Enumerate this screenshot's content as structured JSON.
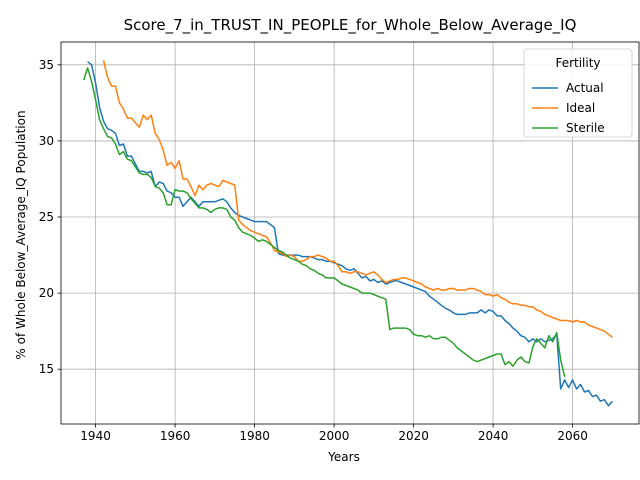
{
  "chart_data": {
    "type": "line",
    "title": "Score_7_in_TRUST_IN_PEOPLE_for_Whole_Below_Average_IQ",
    "xlabel": "Years",
    "ylabel": "% of Whole Below_Average_IQ Population",
    "xlim": [
      1931.3,
      2076.7
    ],
    "ylim": [
      11.4,
      36.5
    ],
    "xticks": [
      1940,
      1960,
      1980,
      2000,
      2020,
      2040,
      2060
    ],
    "yticks": [
      15,
      20,
      25,
      30,
      35
    ],
    "grid": true,
    "legend": {
      "title": "Fertility",
      "placement": "top-right"
    },
    "series": [
      {
        "name": "Actual",
        "color": "#1f77b4",
        "x": [
          1938,
          1939,
          1940,
          1941,
          1942,
          1943,
          1944,
          1945,
          1946,
          1947,
          1948,
          1949,
          1950,
          1951,
          1952,
          1953,
          1954,
          1955,
          1956,
          1957,
          1958,
          1959,
          1960,
          1961,
          1962,
          1963,
          1964,
          1965,
          1966,
          1967,
          1968,
          1969,
          1970,
          1971,
          1972,
          1973,
          1974,
          1975,
          1976,
          1977,
          1978,
          1979,
          1980,
          1981,
          1982,
          1983,
          1984,
          1985,
          1986,
          1987,
          1988,
          1989,
          1990,
          1991,
          1992,
          1993,
          1994,
          1995,
          1996,
          1997,
          1998,
          1999,
          2000,
          2001,
          2002,
          2003,
          2004,
          2005,
          2006,
          2007,
          2008,
          2009,
          2010,
          2011,
          2012,
          2013,
          2014,
          2015,
          2016,
          2017,
          2018,
          2019,
          2020,
          2021,
          2022,
          2023,
          2024,
          2025,
          2026,
          2027,
          2028,
          2029,
          2030,
          2031,
          2032,
          2033,
          2034,
          2035,
          2036,
          2037,
          2038,
          2039,
          2040,
          2041,
          2042,
          2043,
          2044,
          2045,
          2046,
          2047,
          2048,
          2049,
          2050,
          2051,
          2052,
          2053,
          2054,
          2055,
          2056,
          2057,
          2058,
          2059,
          2060,
          2061,
          2062,
          2063,
          2064,
          2065,
          2066,
          2067,
          2068,
          2069,
          2070
        ],
        "values": [
          35.2,
          35.0,
          33.8,
          32.2,
          31.3,
          30.8,
          30.7,
          30.5,
          29.7,
          29.8,
          29.0,
          29.0,
          28.5,
          28.0,
          28.0,
          27.9,
          28.0,
          27.0,
          27.3,
          27.2,
          26.7,
          26.6,
          26.3,
          26.3,
          25.7,
          26.0,
          26.3,
          26.0,
          25.7,
          26.0,
          26.0,
          26.0,
          26.0,
          26.1,
          26.2,
          26.0,
          25.6,
          25.3,
          25.1,
          25.0,
          24.9,
          24.8,
          24.7,
          24.7,
          24.7,
          24.7,
          24.5,
          24.3,
          22.6,
          22.5,
          22.5,
          22.5,
          22.5,
          22.5,
          22.4,
          22.4,
          22.4,
          22.3,
          22.2,
          22.2,
          22.1,
          22.1,
          22.0,
          21.9,
          21.8,
          21.6,
          21.5,
          21.6,
          21.3,
          21.0,
          21.1,
          20.8,
          20.9,
          20.7,
          20.8,
          20.6,
          20.7,
          20.8,
          20.8,
          20.7,
          20.6,
          20.5,
          20.4,
          20.3,
          20.2,
          20.1,
          19.8,
          19.6,
          19.4,
          19.2,
          19.0,
          18.9,
          18.7,
          18.6,
          18.6,
          18.6,
          18.7,
          18.7,
          18.7,
          18.9,
          18.7,
          18.9,
          18.8,
          18.5,
          18.5,
          18.2,
          18.0,
          17.7,
          17.5,
          17.2,
          17.1,
          16.8,
          17.0,
          16.8,
          17.0,
          16.8,
          16.9,
          17.0,
          17.3,
          13.7,
          14.3,
          13.8,
          14.3,
          13.7,
          14.0,
          13.5,
          13.6,
          13.2,
          13.3,
          12.9,
          13.0,
          12.6,
          12.9
        ]
      },
      {
        "name": "Ideal",
        "color": "#ff7f0e",
        "x": [
          1942,
          1943,
          1944,
          1945,
          1946,
          1947,
          1948,
          1949,
          1950,
          1951,
          1952,
          1953,
          1954,
          1955,
          1956,
          1957,
          1958,
          1959,
          1960,
          1961,
          1962,
          1963,
          1964,
          1965,
          1966,
          1967,
          1968,
          1969,
          1970,
          1971,
          1972,
          1973,
          1974,
          1975,
          1976,
          1977,
          1978,
          1979,
          1980,
          1981,
          1982,
          1983,
          1984,
          1985,
          1986,
          1987,
          1988,
          1989,
          1990,
          1991,
          1992,
          1993,
          1994,
          1995,
          1996,
          1997,
          1998,
          1999,
          2000,
          2001,
          2002,
          2003,
          2004,
          2005,
          2006,
          2007,
          2008,
          2009,
          2010,
          2011,
          2012,
          2013,
          2014,
          2015,
          2016,
          2017,
          2018,
          2019,
          2020,
          2021,
          2022,
          2023,
          2024,
          2025,
          2026,
          2027,
          2028,
          2029,
          2030,
          2031,
          2032,
          2033,
          2034,
          2035,
          2036,
          2037,
          2038,
          2039,
          2040,
          2041,
          2042,
          2043,
          2044,
          2045,
          2046,
          2047,
          2048,
          2049,
          2050,
          2051,
          2052,
          2053,
          2054,
          2055,
          2056,
          2057,
          2058,
          2059,
          2060,
          2061,
          2062,
          2063,
          2064,
          2065,
          2066,
          2067,
          2068,
          2069,
          2070
        ],
        "values": [
          35.3,
          34.2,
          33.6,
          33.6,
          32.5,
          32.1,
          31.5,
          31.5,
          31.2,
          30.9,
          31.7,
          31.4,
          31.7,
          30.5,
          30.1,
          29.4,
          28.4,
          28.6,
          28.2,
          28.7,
          27.5,
          27.5,
          27.0,
          26.4,
          27.1,
          26.8,
          27.1,
          27.2,
          27.1,
          27.0,
          27.4,
          27.3,
          27.2,
          27.1,
          24.8,
          24.5,
          24.3,
          24.1,
          24.0,
          23.9,
          23.8,
          23.7,
          23.3,
          22.8,
          22.7,
          22.6,
          22.4,
          22.5,
          22.4,
          22.1,
          22.1,
          22.2,
          22.4,
          22.4,
          22.5,
          22.4,
          22.3,
          22.1,
          22.1,
          21.8,
          21.4,
          21.4,
          21.3,
          21.4,
          21.4,
          21.3,
          21.2,
          21.3,
          21.4,
          21.2,
          20.9,
          20.7,
          20.8,
          20.9,
          20.9,
          21.0,
          21.0,
          20.9,
          20.8,
          20.7,
          20.6,
          20.4,
          20.3,
          20.2,
          20.3,
          20.2,
          20.2,
          20.3,
          20.3,
          20.2,
          20.2,
          20.2,
          20.3,
          20.3,
          20.2,
          20.1,
          19.9,
          19.9,
          19.8,
          19.9,
          19.7,
          19.6,
          19.4,
          19.3,
          19.3,
          19.2,
          19.2,
          19.1,
          19.1,
          18.9,
          18.8,
          18.6,
          18.5,
          18.4,
          18.3,
          18.2,
          18.2,
          18.2,
          18.1,
          18.2,
          18.1,
          18.1,
          17.9,
          17.8,
          17.7,
          17.6,
          17.5,
          17.3,
          17.1
        ]
      },
      {
        "name": "Sterile",
        "color": "#2ca02c",
        "x": [
          1937,
          1938,
          1939,
          1940,
          1941,
          1942,
          1943,
          1944,
          1945,
          1946,
          1947,
          1948,
          1949,
          1950,
          1951,
          1952,
          1953,
          1954,
          1955,
          1956,
          1957,
          1958,
          1959,
          1960,
          1961,
          1962,
          1963,
          1964,
          1965,
          1966,
          1967,
          1968,
          1969,
          1970,
          1971,
          1972,
          1973,
          1974,
          1975,
          1976,
          1977,
          1978,
          1979,
          1980,
          1981,
          1982,
          1983,
          1984,
          1985,
          1986,
          1987,
          1988,
          1989,
          1990,
          1991,
          1992,
          1993,
          1994,
          1995,
          1996,
          1997,
          1998,
          1999,
          2000,
          2001,
          2002,
          2003,
          2004,
          2005,
          2006,
          2007,
          2008,
          2009,
          2010,
          2011,
          2012,
          2013,
          2014,
          2015,
          2016,
          2017,
          2018,
          2019,
          2020,
          2021,
          2022,
          2023,
          2024,
          2025,
          2026,
          2027,
          2028,
          2029,
          2030,
          2031,
          2032,
          2033,
          2034,
          2035,
          2036,
          2037,
          2038,
          2039,
          2040,
          2041,
          2042,
          2043,
          2044,
          2045,
          2046,
          2047,
          2048,
          2049,
          2050,
          2051,
          2052,
          2053,
          2054,
          2055,
          2056,
          2057,
          2058
        ],
        "values": [
          34.0,
          34.8,
          33.9,
          32.7,
          31.4,
          30.8,
          30.3,
          30.2,
          29.8,
          29.1,
          29.3,
          28.8,
          28.7,
          28.3,
          27.9,
          27.8,
          27.8,
          27.6,
          27.0,
          26.9,
          26.6,
          25.8,
          25.8,
          26.8,
          26.7,
          26.7,
          26.6,
          26.2,
          25.9,
          25.6,
          25.6,
          25.5,
          25.3,
          25.5,
          25.6,
          25.6,
          25.5,
          25.0,
          24.8,
          24.3,
          24.0,
          23.9,
          23.8,
          23.6,
          23.4,
          23.5,
          23.4,
          23.2,
          23.0,
          22.8,
          22.7,
          22.5,
          22.3,
          22.2,
          22.1,
          21.9,
          21.8,
          21.6,
          21.5,
          21.3,
          21.2,
          21.0,
          21.0,
          21.0,
          20.8,
          20.6,
          20.5,
          20.4,
          20.3,
          20.2,
          20.0,
          20.0,
          20.0,
          19.9,
          19.8,
          19.7,
          19.6,
          17.6,
          17.7,
          17.7,
          17.7,
          17.7,
          17.6,
          17.3,
          17.2,
          17.2,
          17.1,
          17.2,
          17.0,
          17.0,
          17.1,
          17.1,
          16.9,
          16.7,
          16.4,
          16.2,
          16.0,
          15.8,
          15.6,
          15.5,
          15.6,
          15.7,
          15.8,
          15.9,
          16.0,
          16.0,
          15.3,
          15.5,
          15.2,
          15.6,
          15.8,
          15.5,
          15.4,
          16.5,
          17.0,
          16.7,
          16.4,
          17.2,
          16.8,
          17.4,
          15.6,
          14.5
        ]
      }
    ]
  }
}
